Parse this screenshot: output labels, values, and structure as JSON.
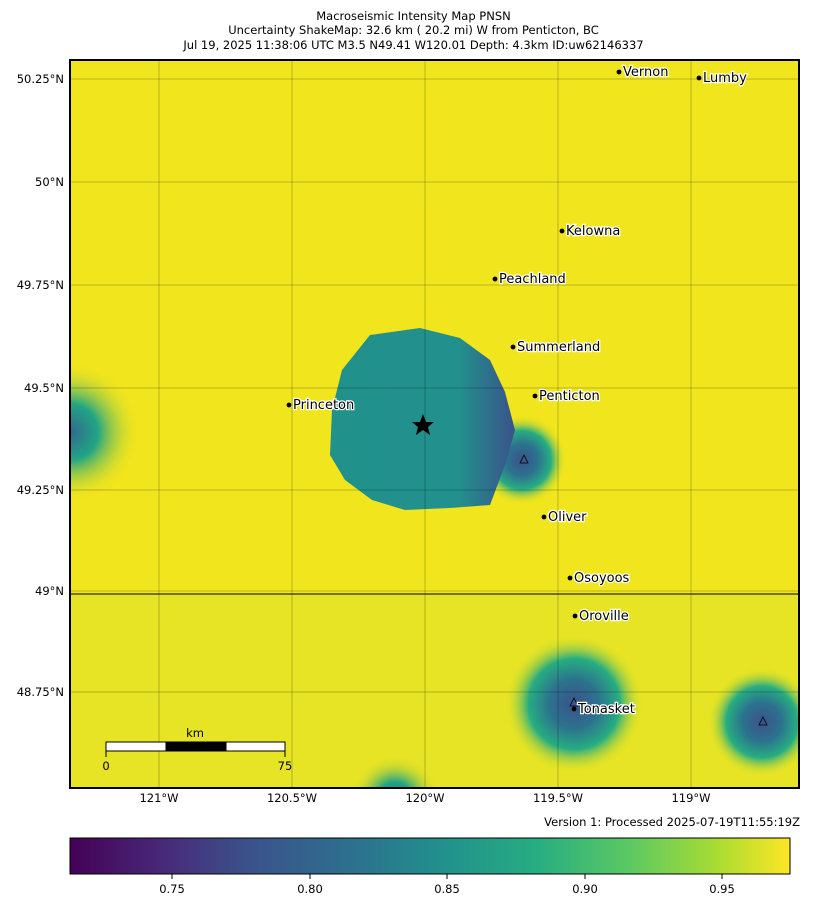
{
  "title": {
    "line1": "Macroseismic Intensity Map PNSN",
    "line2": "Uncertainty ShakeMap: 32.6 km (  20.2 mi) W from Penticton, BC",
    "line3": "Jul 19, 2025 11:38:06 UTC M3.5 N49.41 W120.01 Depth: 4.3km ID:uw62146337"
  },
  "colors": {
    "low": "#440154",
    "mid": "#21918c",
    "high": "#f1e51d",
    "grid": "#000000"
  },
  "map": {
    "lat_labels": [
      "50.25°N",
      "50°N",
      "49.75°N",
      "49.5°N",
      "49.25°N",
      "49°N",
      "48.75°N"
    ],
    "lon_labels": [
      "121°W",
      "120.5°W",
      "120°W",
      "119.5°W",
      "119°W"
    ],
    "epicenter_icon": "star-icon",
    "station_icon": "triangle-icon",
    "cities": [
      {
        "name": "Vernon"
      },
      {
        "name": "Lumby"
      },
      {
        "name": "Kelowna"
      },
      {
        "name": "Peachland"
      },
      {
        "name": "Summerland"
      },
      {
        "name": "Penticton"
      },
      {
        "name": "Princeton"
      },
      {
        "name": "Oliver"
      },
      {
        "name": "Osoyoos"
      },
      {
        "name": "Oroville"
      },
      {
        "name": "Tonasket"
      }
    ],
    "scale_bar": {
      "unit": "km",
      "start": "0",
      "end": "75"
    }
  },
  "version": "Version 1: Processed 2025-07-19T11:55:19Z",
  "colorbar": {
    "ticks": [
      "0.75",
      "0.80",
      "0.85",
      "0.90",
      "0.95"
    ]
  }
}
